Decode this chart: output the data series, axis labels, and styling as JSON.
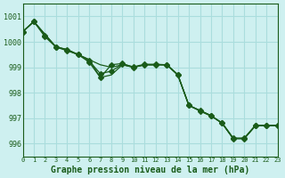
{
  "title": "Graphe pression niveau de la mer (hPa)",
  "background_color": "#cef0f0",
  "grid_color": "#aadddd",
  "line_color": "#1a5c1a",
  "xlim": [
    0,
    23
  ],
  "ylim": [
    995.5,
    1001.5
  ],
  "yticks": [
    996,
    997,
    998,
    999,
    1000,
    1001
  ],
  "xticks": [
    0,
    1,
    2,
    3,
    4,
    5,
    6,
    7,
    8,
    9,
    10,
    11,
    12,
    13,
    14,
    15,
    16,
    17,
    18,
    19,
    20,
    21,
    22,
    23
  ],
  "series": [
    [
      1000.4,
      1000.8,
      1000.3,
      999.8,
      999.7,
      999.5,
      999.3,
      999.1,
      999.0,
      999.1,
      999.0,
      999.1,
      999.1,
      999.1,
      998.7,
      997.5,
      997.3,
      997.1,
      996.8,
      996.2,
      996.2,
      996.7,
      996.7,
      996.7
    ],
    [
      1000.4,
      1000.8,
      1000.3,
      999.8,
      999.7,
      999.5,
      999.3,
      998.6,
      998.7,
      999.1,
      999.0,
      999.1,
      999.1,
      999.1,
      998.7,
      997.5,
      997.3,
      997.1,
      996.8,
      996.2,
      996.2,
      996.7,
      996.7,
      996.7
    ],
    [
      1000.4,
      1000.8,
      1000.2,
      999.8,
      999.65,
      999.5,
      999.2,
      998.6,
      999.1,
      999.15,
      999.0,
      999.1,
      999.1,
      999.1,
      998.7,
      997.5,
      997.3,
      997.1,
      996.8,
      996.2,
      996.2,
      996.7,
      996.7,
      996.7
    ],
    [
      1000.4,
      1000.8,
      1000.25,
      999.8,
      999.68,
      999.5,
      999.25,
      998.75,
      998.85,
      999.12,
      999.02,
      999.12,
      999.12,
      999.1,
      998.72,
      997.5,
      997.28,
      997.08,
      996.82,
      996.22,
      996.22,
      996.72,
      996.72,
      996.72
    ]
  ],
  "series_with_markers": [
    2,
    3
  ],
  "marker": "D",
  "markersize": 3
}
